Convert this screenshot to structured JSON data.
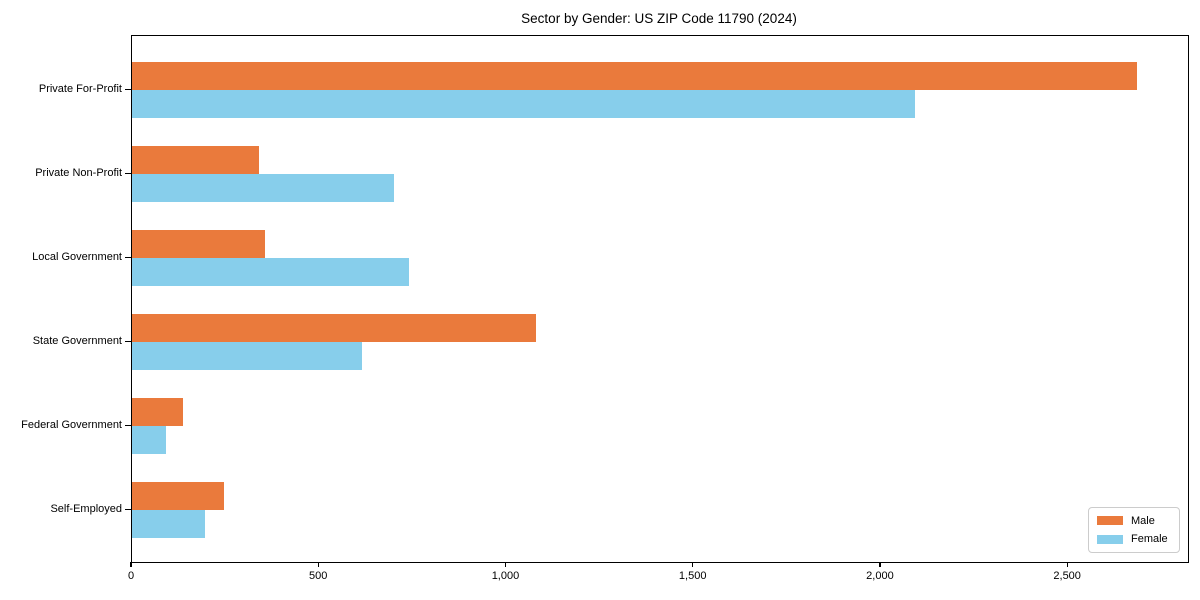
{
  "chart_data": {
    "type": "bar",
    "orientation": "horizontal",
    "title": "Sector by Gender: US ZIP Code 11790 (2024)",
    "categories": [
      "Private For-Profit",
      "Private Non-Profit",
      "Local Government",
      "State Government",
      "Federal Government",
      "Self-Employed"
    ],
    "series": [
      {
        "name": "Male",
        "color": "#EA7A3C",
        "values": [
          2685,
          340,
          355,
          1080,
          135,
          245
        ]
      },
      {
        "name": "Female",
        "color": "#87CEEB",
        "values": [
          2090,
          700,
          740,
          615,
          90,
          195
        ]
      }
    ],
    "xlabel": "",
    "ylabel": "",
    "x_ticks": [
      0,
      500,
      1000,
      1500,
      2000,
      2500
    ],
    "x_tick_labels": [
      "0",
      "500",
      "1,000",
      "1,500",
      "2,000",
      "2,500"
    ],
    "xlim": [
      0,
      2820
    ],
    "grid": false,
    "legend_position": "lower right",
    "background_color": "#ffffff",
    "axis_color": "#000000"
  }
}
